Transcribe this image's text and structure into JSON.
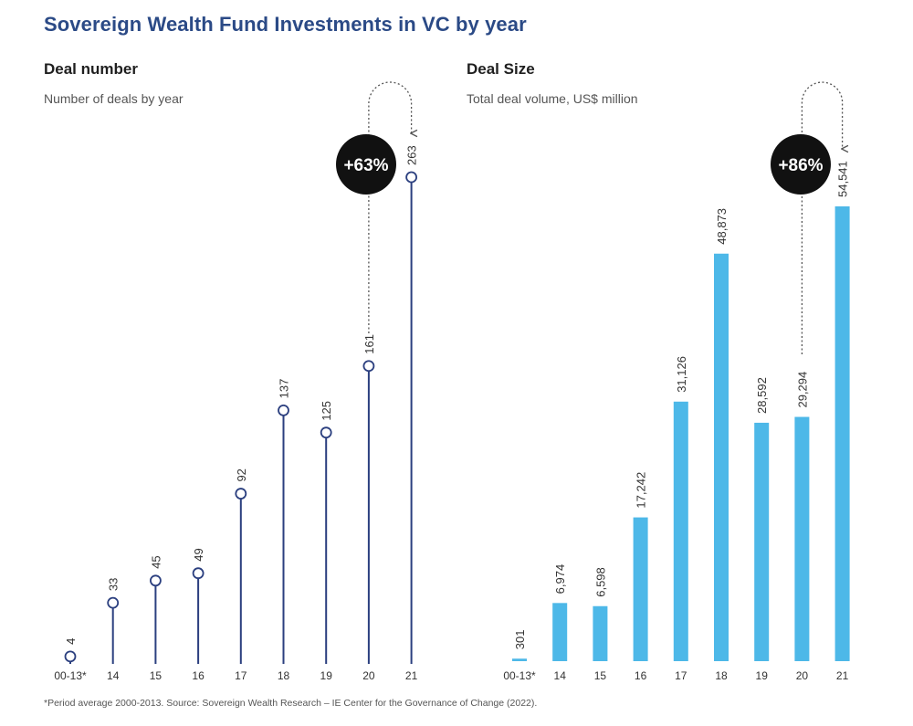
{
  "page": {
    "title": "Sovereign Wealth Fund Investments in VC by year",
    "footnote": "*Period average 2000-2013. Source: Sovereign Wealth Research – IE Center for the Governance of Change (2022)."
  },
  "chart_data": [
    {
      "type": "lollipop",
      "title": "Deal number",
      "subtitle": "Number of deals by year",
      "categories": [
        "00-13*",
        "14",
        "15",
        "16",
        "17",
        "18",
        "19",
        "20",
        "21"
      ],
      "values": [
        4,
        33,
        45,
        49,
        92,
        137,
        125,
        161,
        263
      ],
      "labels": [
        "4",
        "33",
        "45",
        "49",
        "92",
        "137",
        "125",
        "161",
        "263"
      ],
      "ylim": [
        0,
        263
      ],
      "annotation": {
        "text": "+63%",
        "from": "20",
        "to": "21"
      },
      "color": "#2b3f7f"
    },
    {
      "type": "bar",
      "title": "Deal Size",
      "subtitle": "Total deal volume, US$ million",
      "categories": [
        "00-13*",
        "14",
        "15",
        "16",
        "17",
        "18",
        "19",
        "20",
        "21"
      ],
      "values": [
        301,
        6974,
        6598,
        17242,
        31126,
        48873,
        28592,
        29294,
        54541
      ],
      "labels": [
        "301",
        "6,974",
        "6,598",
        "17,242",
        "31,126",
        "48,873",
        "28,592",
        "29,294",
        "54,541"
      ],
      "ylim": [
        0,
        54541
      ],
      "annotation": {
        "text": "+86%",
        "from": "20",
        "to": "21"
      },
      "color": "#4db8e8"
    }
  ]
}
